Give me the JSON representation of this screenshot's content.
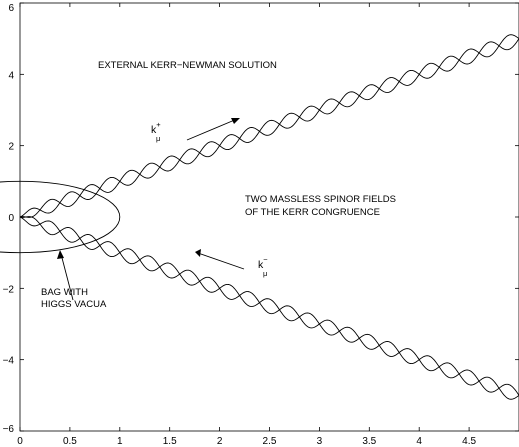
{
  "chart_data": {
    "type": "line",
    "title": "",
    "xlabel": "",
    "ylabel": "",
    "xlim": [
      0,
      5
    ],
    "ylim": [
      -6,
      6
    ],
    "grid": false,
    "x_ticks": [
      "0",
      "0.5",
      "1",
      "1.5",
      "2",
      "2.5",
      "3",
      "3.5",
      "4",
      "4.5"
    ],
    "y_ticks": [
      "−6",
      "−4",
      "−2",
      "0",
      "2",
      "4",
      "6"
    ],
    "series": [
      {
        "x": [
          0,
          1,
          2,
          3,
          4,
          5
        ],
        "values": [
          0,
          1.0,
          2.0,
          3.0,
          4.0,
          5.0
        ]
      },
      {
        "x": [
          0,
          1,
          2,
          3,
          4,
          5
        ],
        "values": [
          0,
          -1.0,
          -2.0,
          -3.0,
          -4.0,
          -5.0
        ]
      }
    ],
    "bag_ellipse": {
      "center": [
        0,
        0
      ],
      "rx": 1.0,
      "ry": 1.0
    }
  },
  "annotations": {
    "external": "EXTERNAL KERR−NEWMAN SOLUTION",
    "spinor_line1": "TWO MASSLESS SPINOR FIELDS",
    "spinor_line2": "OF THE KERR CONGRUENCE",
    "bag_line1": "BAG WITH",
    "bag_line2": "HIGGS VACUA",
    "k_plus_base": "k",
    "k_plus_sup": "+",
    "k_plus_sub": "μ",
    "k_minus_base": "k",
    "k_minus_sup": "−",
    "k_minus_sub": "μ"
  }
}
